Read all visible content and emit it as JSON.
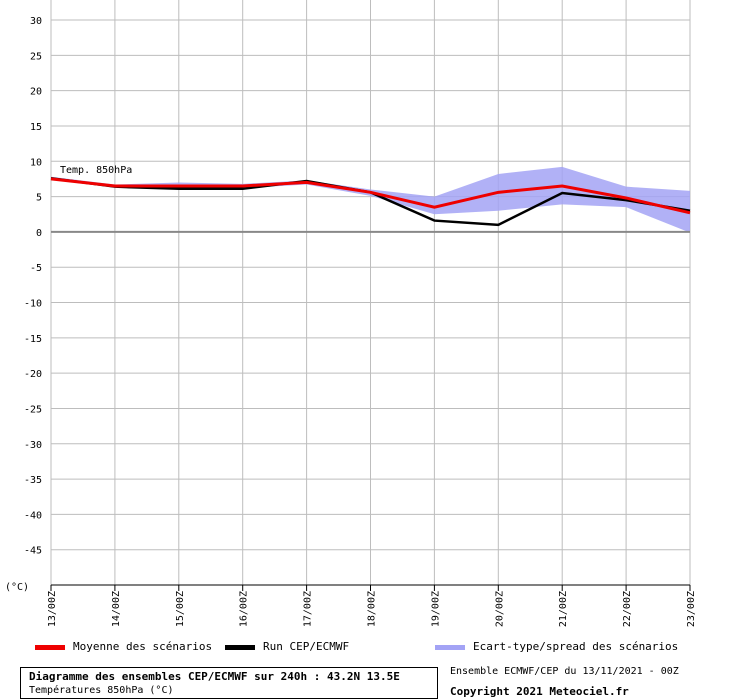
{
  "chart_data": {
    "type": "line",
    "series_label": "Temp. 850hPa",
    "unit_label": "(°C)",
    "ylim": [
      -50,
      30
    ],
    "yticks": [
      30,
      25,
      20,
      15,
      10,
      5,
      0,
      -5,
      -10,
      -15,
      -20,
      -25,
      -30,
      -35,
      -40,
      -45
    ],
    "categories": [
      "13/00Z",
      "14/00Z",
      "15/00Z",
      "16/00Z",
      "17/00Z",
      "18/00Z",
      "19/00Z",
      "20/00Z",
      "21/00Z",
      "22/00Z",
      "23/00Z"
    ],
    "series": [
      {
        "name": "Moyenne des scénarios",
        "color": "#ee0000",
        "values": [
          7.5,
          6.5,
          6.5,
          6.5,
          7.0,
          5.6,
          3.5,
          5.6,
          6.5,
          4.8,
          2.7
        ]
      },
      {
        "name": "Run CEP/ECMWF",
        "color": "#000000",
        "values": [
          7.6,
          6.4,
          6.1,
          6.1,
          7.2,
          5.6,
          1.6,
          1.0,
          5.5,
          4.5,
          3.0
        ]
      }
    ],
    "spread": {
      "name": "Ecart-type/spread des scénarios",
      "color": "#a3a3f5",
      "upper": [
        7.8,
        6.7,
        7.0,
        6.8,
        7.3,
        6.0,
        5.0,
        8.2,
        9.2,
        6.4,
        5.8
      ],
      "lower": [
        7.4,
        6.3,
        6.2,
        6.2,
        6.7,
        5.1,
        2.5,
        3.0,
        3.9,
        3.5,
        -0.1
      ]
    },
    "grid": true
  },
  "legend": {
    "mean": "Moyenne des scénarios",
    "run": "Run CEP/ECMWF",
    "spread": "Ecart-type/spread des scénarios"
  },
  "footer": {
    "title": "Diagramme des ensembles CEP/ECMWF sur 240h : 43.2N 13.5E",
    "subtitle": "Températures 850hPa (°C)",
    "ensemble": "Ensemble ECMWF/CEP du 13/11/2021 - 00Z",
    "copyright": "Copyright 2021 Meteociel.fr"
  }
}
